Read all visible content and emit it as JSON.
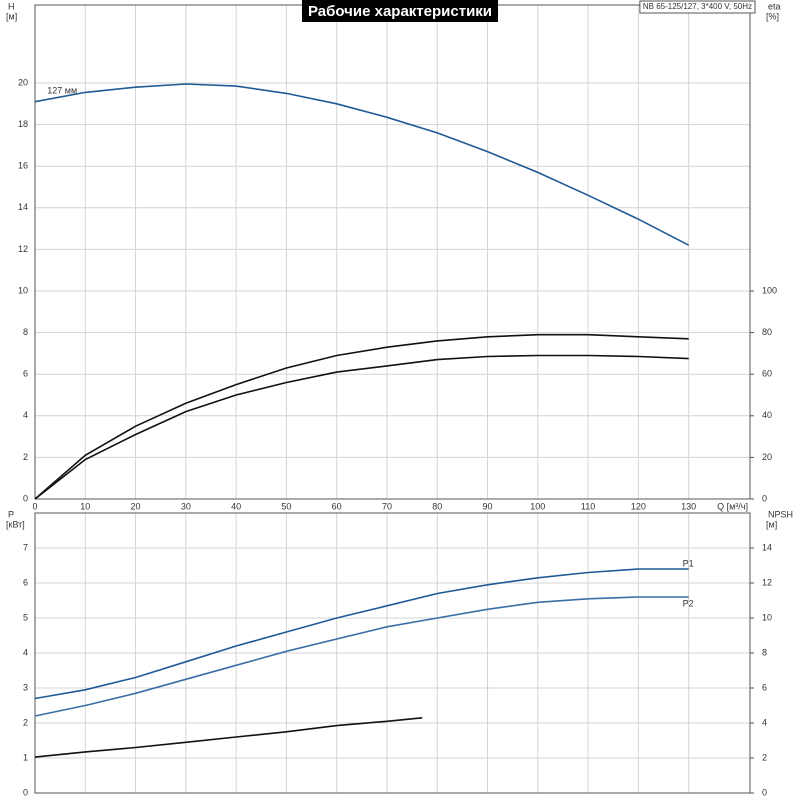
{
  "chart_data": [
    {
      "type": "line",
      "title": "Рабочие характеристики",
      "annotation": "NB 65-125/127, 3*400 V, 50Hz",
      "ylabel": "H",
      "yunit": "[м]",
      "y2label": "eta",
      "y2unit": "[%]",
      "xlabel": "Q [м³/ч]",
      "x": [
        0,
        10,
        20,
        30,
        40,
        50,
        60,
        70,
        80,
        90,
        100,
        110,
        120,
        130
      ],
      "xlim": [
        0,
        142.2
      ],
      "xticks": [
        0,
        10,
        20,
        30,
        40,
        50,
        60,
        70,
        80,
        90,
        100,
        110,
        120,
        130
      ],
      "xtick_labels": true,
      "ylim": [
        0,
        23.75
      ],
      "yticks": [
        0,
        2,
        4,
        6,
        8,
        10,
        12,
        14,
        16,
        18,
        20
      ],
      "y2lim": [
        0,
        237.5
      ],
      "y2ticks": [
        0,
        20,
        40,
        60,
        80,
        100
      ],
      "grid": true,
      "series": [
        {
          "name": "127 мм",
          "label_position": "start",
          "color": "#1f5a96",
          "values": [
            19.1,
            19.55,
            19.8,
            19.95,
            19.85,
            19.5,
            19.0,
            18.35,
            17.6,
            16.7,
            15.7,
            14.6,
            13.45,
            12.2
          ]
        },
        {
          "color": "#111111",
          "axis": "y2",
          "values": [
            0,
            21,
            35,
            46,
            55,
            63,
            69,
            73,
            76,
            78,
            79,
            79,
            78,
            77
          ]
        },
        {
          "color": "#111111",
          "axis": "y2",
          "values": [
            0,
            19,
            31,
            42,
            50,
            56,
            61,
            64,
            67,
            68.5,
            69,
            69,
            68.5,
            67.5
          ]
        }
      ]
    },
    {
      "type": "line",
      "ylabel": "P",
      "yunit": "[кВт]",
      "y2label": "NPSH",
      "y2unit": "[м]",
      "x": [
        0,
        10,
        20,
        30,
        40,
        50,
        60,
        70,
        80,
        90,
        100,
        110,
        120,
        130
      ],
      "xlim": [
        0,
        142.2
      ],
      "xticks": [
        0,
        10,
        20,
        30,
        40,
        50,
        60,
        70,
        80,
        90,
        100,
        110,
        120,
        130
      ],
      "xtick_labels": false,
      "ylim": [
        0,
        8
      ],
      "yticks": [
        0,
        1,
        2,
        3,
        4,
        5,
        6,
        7
      ],
      "y2lim": [
        0,
        16
      ],
      "y2ticks": [
        0,
        2,
        4,
        6,
        8,
        10,
        12,
        14
      ],
      "grid": true,
      "series": [
        {
          "name": "P1",
          "label_position": "end",
          "color": "#1f5a96",
          "values": [
            2.7,
            2.95,
            3.3,
            3.75,
            4.2,
            4.6,
            5.0,
            5.35,
            5.7,
            5.95,
            6.15,
            6.3,
            6.4,
            6.4
          ]
        },
        {
          "name": "P2",
          "label_position": "end",
          "color": "#3a6ea5",
          "values": [
            2.2,
            2.5,
            2.85,
            3.25,
            3.65,
            4.05,
            4.4,
            4.75,
            5.0,
            5.25,
            5.45,
            5.55,
            5.6,
            5.6
          ]
        },
        {
          "color": "#111111",
          "axis": "y2",
          "x": [
            0,
            10,
            20,
            30,
            40,
            50,
            60,
            70,
            77
          ],
          "values": [
            2.05,
            2.35,
            2.6,
            2.9,
            3.2,
            3.5,
            3.85,
            4.1,
            4.3
          ]
        }
      ]
    }
  ]
}
